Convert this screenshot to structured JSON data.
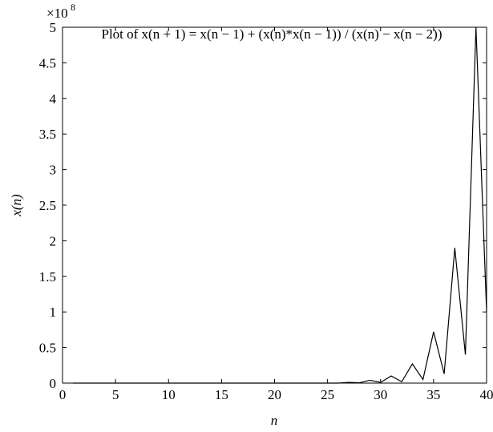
{
  "chart_data": {
    "type": "line",
    "title": "Plot of x(n + 1) = x(n − 1) + (x(n)*x(n − 1)) / (x(n) − x(n − 2))",
    "xlabel": "n",
    "ylabel": "x(n)",
    "y_scale_label": "×10",
    "y_scale_exponent": "8",
    "xlim": [
      0,
      40
    ],
    "ylim": [
      0,
      5
    ],
    "y_multiplier": 100000000,
    "xticks": [
      0,
      5,
      10,
      15,
      20,
      25,
      30,
      35,
      40
    ],
    "yticks": [
      0,
      0.5,
      1,
      1.5,
      2,
      2.5,
      3,
      3.5,
      4,
      4.5,
      5
    ],
    "ytick_labels": [
      "0",
      "0.5",
      "1",
      "1.5",
      "2",
      "2.5",
      "3",
      "3.5",
      "4",
      "4.5",
      "5"
    ],
    "grid": false,
    "series": [
      {
        "x": [
          1,
          2,
          3,
          4,
          5,
          6,
          7,
          8,
          9,
          10,
          11,
          12,
          13,
          14,
          15,
          16,
          17,
          18,
          19,
          20,
          21,
          22,
          23,
          24,
          25,
          26,
          27,
          28,
          29,
          30,
          31,
          32,
          33,
          34,
          35,
          36,
          37,
          38,
          39,
          40
        ],
        "y": [
          0,
          0,
          0,
          0,
          0,
          0,
          0,
          0,
          0,
          0,
          0,
          0,
          0,
          0,
          0,
          0,
          0,
          0,
          0,
          0,
          0,
          0,
          0,
          0,
          0,
          0,
          0.01,
          0.005,
          0.04,
          0.01,
          0.1,
          0.02,
          0.27,
          0.05,
          0.72,
          0.13,
          1.9,
          0.4,
          5.0,
          1.0
        ]
      }
    ]
  }
}
